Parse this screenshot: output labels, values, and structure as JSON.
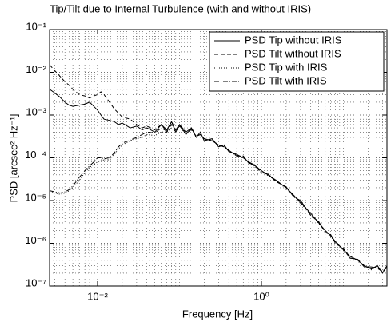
{
  "chart_data": {
    "type": "line",
    "title": "Tip/Tilt due to Internal Turbulence (with and without IRIS)",
    "xlabel": "Frequency [Hz]",
    "ylabel": "PSD [arcsec² Hz⁻¹]",
    "xscale": "log",
    "yscale": "log",
    "grid": true,
    "legend": "upper right",
    "xlim": [
      0.0026,
      34
    ],
    "ylim": [
      1e-07,
      0.1
    ],
    "xticks": [
      {
        "value": 0.01,
        "label": "10⁻²"
      },
      {
        "value": 1,
        "label": "10⁰"
      }
    ],
    "yticks": [
      {
        "value": 1e-07,
        "label": "10⁻⁷"
      },
      {
        "value": 1e-06,
        "label": "10⁻⁶"
      },
      {
        "value": 1e-05,
        "label": "10⁻⁵"
      },
      {
        "value": 0.0001,
        "label": "10⁻⁴"
      },
      {
        "value": 0.001,
        "label": "10⁻³"
      },
      {
        "value": 0.01,
        "label": "10⁻²"
      },
      {
        "value": 0.1,
        "label": "10⁻¹"
      }
    ],
    "x": [
      0.0026,
      0.003,
      0.0035,
      0.004,
      0.0045,
      0.005,
      0.006,
      0.007,
      0.008,
      0.009,
      0.01,
      0.011,
      0.012,
      0.014,
      0.016,
      0.018,
      0.02,
      0.025,
      0.03,
      0.035,
      0.04,
      0.05,
      0.06,
      0.07,
      0.08,
      0.09,
      0.1,
      0.12,
      0.14,
      0.16,
      0.18,
      0.2,
      0.25,
      0.3,
      0.35,
      0.4,
      0.5,
      0.6,
      0.7,
      0.8,
      1,
      1.2,
      1.5,
      2,
      2.5,
      3,
      4,
      5,
      6,
      7,
      8,
      10,
      12,
      15,
      18,
      22,
      26,
      30,
      34
    ],
    "series": [
      {
        "name": "PSD Tip without IRIS",
        "color": "#000000",
        "linestyle": "solid",
        "values": [
          0.004,
          0.0033,
          0.0026,
          0.002,
          0.0017,
          0.0016,
          0.0017,
          0.0018,
          0.002,
          0.0016,
          0.0013,
          0.001,
          0.0008,
          0.00075,
          0.0007,
          0.0006,
          0.00065,
          0.0005,
          0.00055,
          0.00045,
          0.0005,
          0.0004,
          0.0006,
          0.00045,
          0.0007,
          0.0004,
          0.0006,
          0.00035,
          0.0005,
          0.0003,
          0.0004,
          0.00025,
          0.00028,
          0.00018,
          0.0002,
          0.00014,
          0.00012,
          0.0001,
          8e-05,
          7e-05,
          5e-05,
          4e-05,
          3e-05,
          2e-05,
          1.3e-05,
          9e-06,
          5e-06,
          3e-06,
          2e-06,
          1.5e-06,
          1.1e-06,
          7e-07,
          5e-07,
          4e-07,
          3e-07,
          2.5e-07,
          3e-07,
          2e-07,
          3e-07
        ]
      },
      {
        "name": "PSD Tilt without IRIS",
        "color": "#000000",
        "linestyle": "dashed",
        "values": [
          0.015,
          0.011,
          0.008,
          0.006,
          0.005,
          0.004,
          0.003,
          0.0028,
          0.0025,
          0.0028,
          0.003,
          0.0035,
          0.003,
          0.002,
          0.0014,
          0.0011,
          0.0009,
          0.0008,
          0.0006,
          0.0005,
          0.00055,
          0.00045,
          0.0006,
          0.0004,
          0.0007,
          0.00045,
          0.00055,
          0.0004,
          0.00045,
          0.00032,
          0.00035,
          0.00028,
          0.00025,
          0.0002,
          0.00018,
          0.00015,
          0.00011,
          0.00011,
          7.5e-05,
          7e-05,
          4.5e-05,
          4.2e-05,
          2.8e-05,
          2.1e-05,
          1.2e-05,
          1e-05,
          4.5e-06,
          3.2e-06,
          1.8e-06,
          1.6e-06,
          1e-06,
          7.5e-07,
          4.5e-07,
          4.2e-07,
          2.8e-07,
          2.8e-07,
          2.6e-07,
          2.2e-07,
          2.7e-07
        ]
      },
      {
        "name": "PSD Tip with IRIS",
        "color": "#000000",
        "linestyle": "dotted",
        "values": [
          1.6e-05,
          1.5e-05,
          1.4e-05,
          1.5e-05,
          1.7e-05,
          2e-05,
          3e-05,
          4.5e-05,
          6e-05,
          7e-05,
          8e-05,
          8.5e-05,
          9e-05,
          9e-05,
          0.00012,
          0.00016,
          0.0002,
          0.00025,
          0.00028,
          0.0003,
          0.00035,
          0.00033,
          0.0004,
          0.0004,
          0.0005,
          0.0004,
          0.00055,
          0.00035,
          0.00048,
          0.0003,
          0.00038,
          0.00026,
          0.00027,
          0.00019,
          0.00019,
          0.00014,
          0.000115,
          0.0001,
          8e-05,
          6.5e-05,
          5e-05,
          3.8e-05,
          3e-05,
          1.9e-05,
          1.3e-05,
          8.5e-06,
          5e-06,
          2.9e-06,
          2e-06,
          1.4e-06,
          1.1e-06,
          6.8e-07,
          5e-07,
          3.8e-07,
          3e-07,
          2.4e-07,
          2.9e-07,
          2e-07,
          2.9e-07
        ]
      },
      {
        "name": "PSD Tilt with IRIS",
        "color": "#000000",
        "linestyle": "dashdot",
        "values": [
          1.7e-05,
          1.6e-05,
          1.5e-05,
          1.6e-05,
          1.8e-05,
          2.2e-05,
          3.5e-05,
          5e-05,
          6.5e-05,
          8e-05,
          0.0001,
          0.0001,
          9.5e-05,
          0.0001,
          0.00013,
          0.00018,
          0.00022,
          0.00026,
          0.0003,
          0.00035,
          0.0004,
          0.00038,
          0.0005,
          0.00042,
          0.0006,
          0.00045,
          0.0006,
          0.0004,
          0.0005,
          0.00032,
          0.00035,
          0.00028,
          0.00025,
          0.0002,
          0.00018,
          0.00015,
          0.00011,
          0.00011,
          7.5e-05,
          7e-05,
          4.5e-05,
          4.2e-05,
          2.8e-05,
          2.1e-05,
          1.2e-05,
          1e-05,
          4.5e-06,
          3.2e-06,
          1.8e-06,
          1.6e-06,
          1e-06,
          7.5e-07,
          4.5e-07,
          4.2e-07,
          2.8e-07,
          2.8e-07,
          2.6e-07,
          2.2e-07,
          2.7e-07
        ]
      }
    ]
  }
}
